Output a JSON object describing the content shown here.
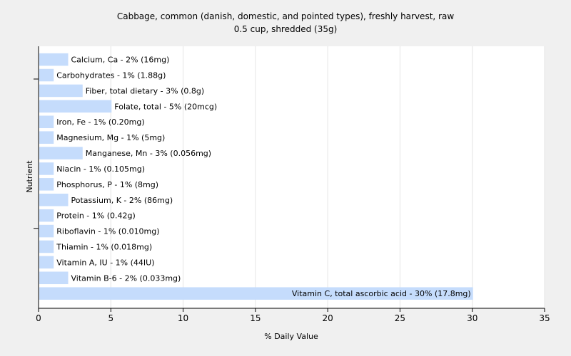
{
  "chart_data": {
    "type": "bar",
    "orientation": "horizontal",
    "title": "Cabbage, common (danish, domestic, and pointed types), freshly harvest, raw",
    "subtitle": "0.5 cup, shredded (35g)",
    "xlabel": "% Daily Value",
    "ylabel": "Nutrient",
    "xlim": [
      0,
      35
    ],
    "xticks": [
      0,
      5,
      10,
      15,
      20,
      25,
      30,
      35
    ],
    "grid": true,
    "bar_color": "#c5dcfc",
    "categories": [
      "Calcium, Ca",
      "Carbohydrates",
      "Fiber, total dietary",
      "Folate, total",
      "Iron, Fe",
      "Magnesium, Mg",
      "Manganese, Mn",
      "Niacin",
      "Phosphorus, P",
      "Potassium, K",
      "Protein",
      "Riboflavin",
      "Thiamin",
      "Vitamin A, IU",
      "Vitamin B-6",
      "Vitamin C, total ascorbic acid"
    ],
    "values": [
      2,
      1,
      3,
      5,
      1,
      1,
      3,
      1,
      1,
      2,
      1,
      1,
      1,
      1,
      2,
      30
    ],
    "labels": [
      "Calcium, Ca - 2% (16mg)",
      "Carbohydrates - 1% (1.88g)",
      "Fiber, total dietary - 3% (0.8g)",
      "Folate, total - 5% (20mcg)",
      "Iron, Fe - 1% (0.20mg)",
      "Magnesium, Mg - 1% (5mg)",
      "Manganese, Mn - 3% (0.056mg)",
      "Niacin - 1% (0.105mg)",
      "Phosphorus, P - 1% (8mg)",
      "Potassium, K - 2% (86mg)",
      "Protein - 1% (0.42g)",
      "Riboflavin - 1% (0.010mg)",
      "Thiamin - 1% (0.018mg)",
      "Vitamin A, IU - 1% (44IU)",
      "Vitamin B-6 - 2% (0.033mg)",
      "Vitamin C, total ascorbic acid - 30% (17.8mg)"
    ]
  }
}
